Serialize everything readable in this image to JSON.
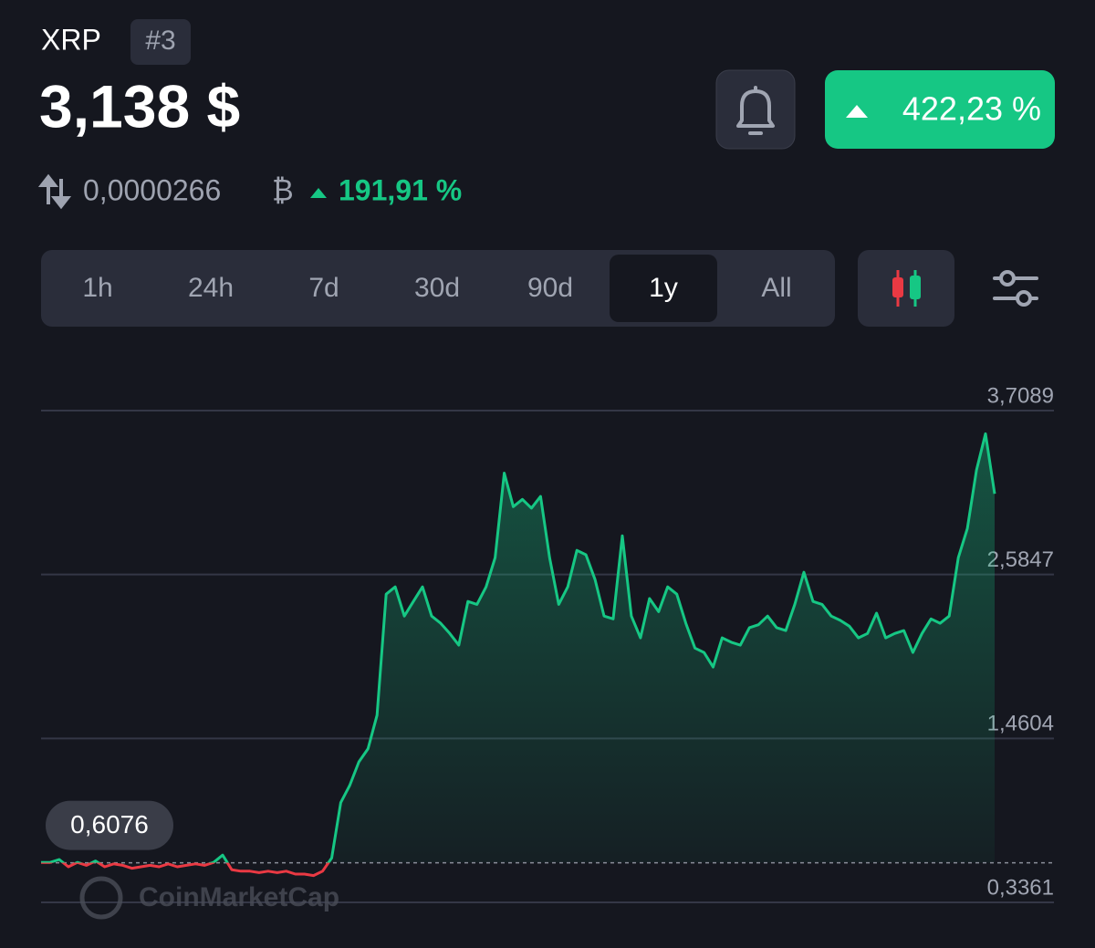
{
  "header": {
    "name": "XRP",
    "rank": "#3",
    "price": "3,138 $",
    "change": "422,23 %",
    "btc_price": "0,0000266",
    "btc_symbol": "₿",
    "btc_change": "191,91 %"
  },
  "tabs": {
    "items": [
      "1h",
      "24h",
      "7d",
      "30d",
      "90d",
      "1y",
      "All"
    ],
    "active": 5
  },
  "chart_data": {
    "type": "line",
    "watermark": "CoinMarketCap",
    "color": "#16c784",
    "below_color": "#ea3943",
    "baseline": {
      "value": 0.6076,
      "label": "0,6076"
    },
    "ylim": [
      0.3361,
      3.7089
    ],
    "yticks": [
      {
        "value": 0.3361,
        "label": "0,3361"
      },
      {
        "value": 1.4604,
        "label": "1,4604"
      },
      {
        "value": 2.5847,
        "label": "2,5847"
      },
      {
        "value": 3.7089,
        "label": "3,7089"
      }
    ],
    "grid": true,
    "values": [
      0.61,
      0.61,
      0.63,
      0.58,
      0.61,
      0.59,
      0.62,
      0.58,
      0.6,
      0.59,
      0.57,
      0.58,
      0.59,
      0.58,
      0.6,
      0.58,
      0.59,
      0.6,
      0.59,
      0.61,
      0.66,
      0.56,
      0.55,
      0.55,
      0.54,
      0.55,
      0.54,
      0.55,
      0.53,
      0.53,
      0.52,
      0.55,
      0.64,
      1.02,
      1.14,
      1.3,
      1.39,
      1.62,
      2.45,
      2.5,
      2.3,
      2.4,
      2.5,
      2.3,
      2.25,
      2.18,
      2.1,
      2.4,
      2.38,
      2.5,
      2.7,
      3.28,
      3.05,
      3.1,
      3.04,
      3.12,
      2.7,
      2.38,
      2.5,
      2.75,
      2.72,
      2.55,
      2.3,
      2.28,
      2.85,
      2.3,
      2.15,
      2.42,
      2.33,
      2.5,
      2.45,
      2.25,
      2.08,
      2.05,
      1.95,
      2.15,
      2.12,
      2.1,
      2.22,
      2.24,
      2.3,
      2.22,
      2.2,
      2.38,
      2.6,
      2.4,
      2.38,
      2.3,
      2.27,
      2.23,
      2.15,
      2.18,
      2.32,
      2.15,
      2.18,
      2.2,
      2.05,
      2.18,
      2.28,
      2.25,
      2.3,
      2.7,
      2.9,
      3.3,
      3.55,
      3.138
    ]
  }
}
